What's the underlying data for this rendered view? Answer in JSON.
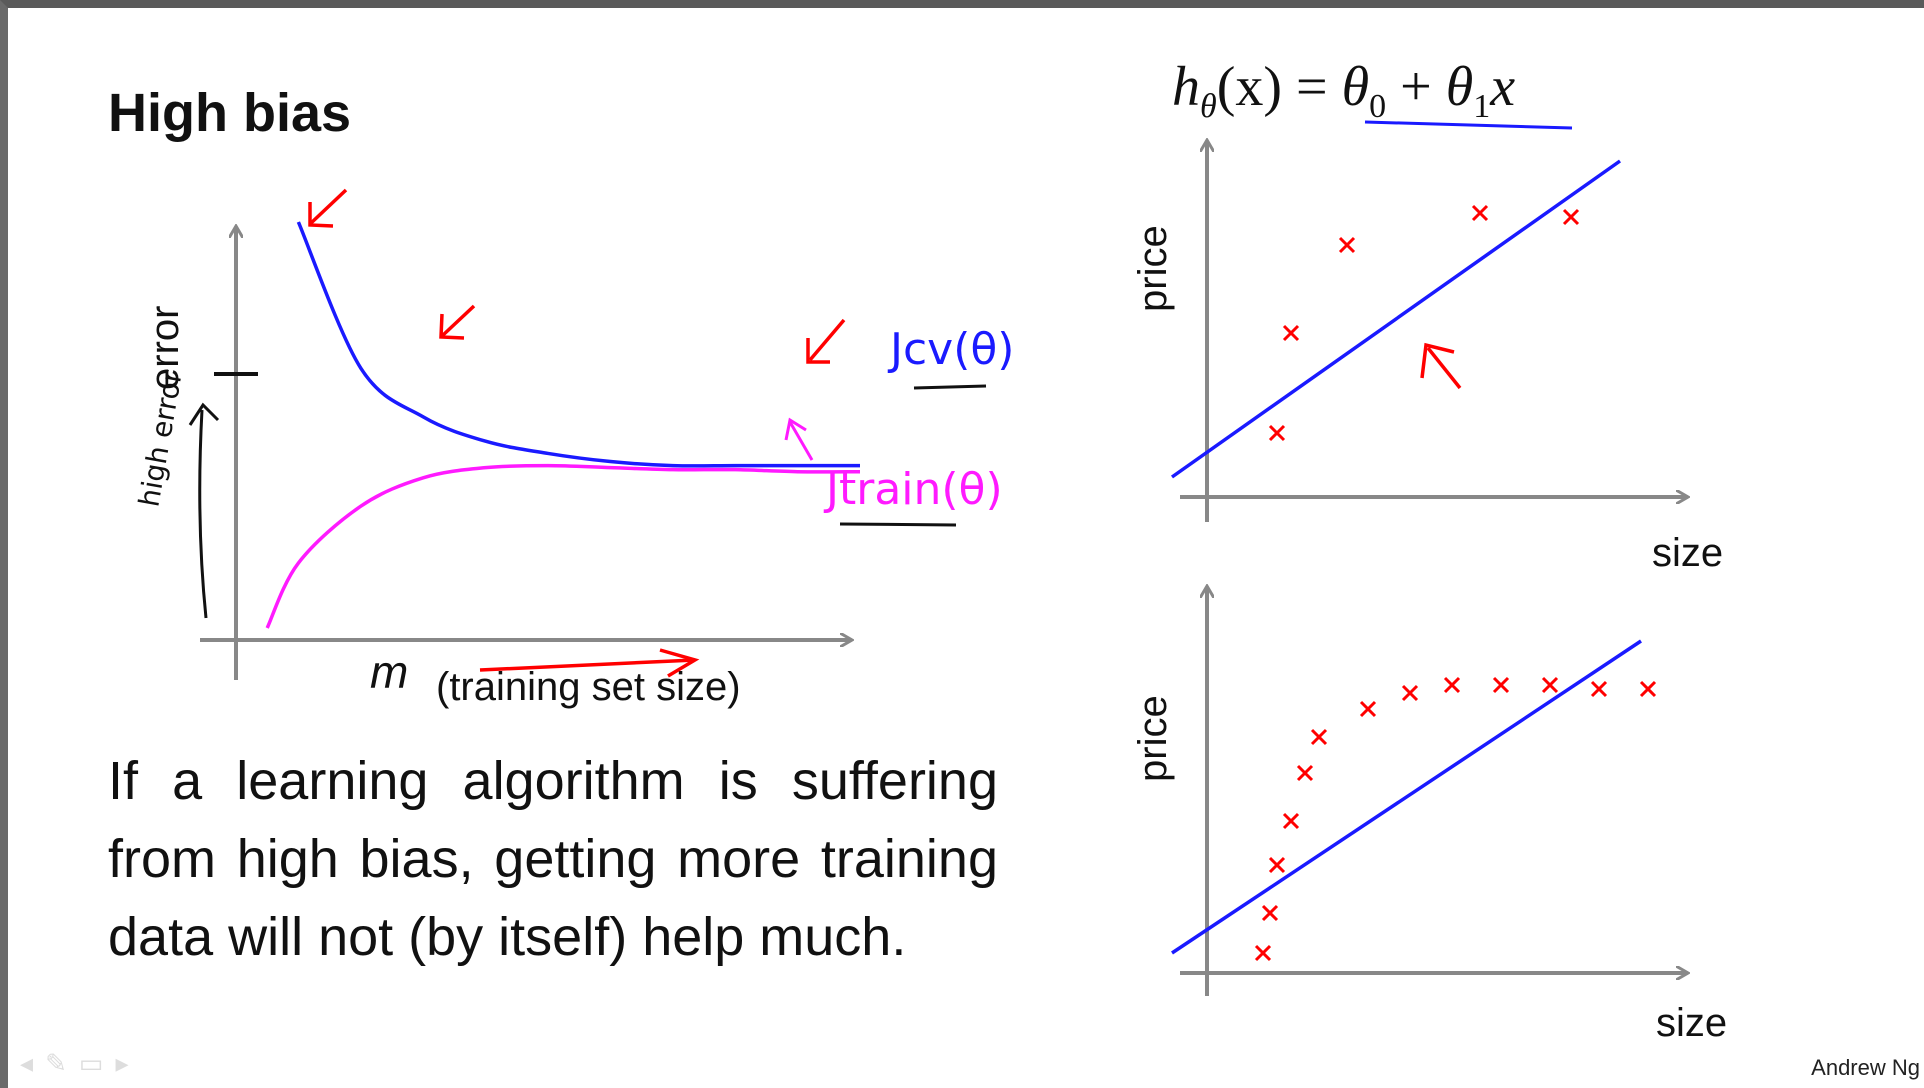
{
  "slide": {
    "title": "High bias",
    "formula": {
      "lhs": "h",
      "lhs_sub": "θ",
      "lhs_arg": "(x) = ",
      "t0": "θ",
      "t0_sub": "0",
      "plus": " + ",
      "t1": "θ",
      "t1_sub": "1",
      "t1_var": "x"
    },
    "body_text": "If a learning algorithm is suffering from high bias, getting more training data will not (by itself) help much.",
    "author": "Andrew Ng"
  },
  "learning_curve": {
    "ylabel": "error",
    "xlabel_var": "m",
    "xlabel_text": "(training set size)",
    "annotation_high_error": "high error",
    "cv_label": "Jcv(θ)",
    "train_label": "Jtrain(θ)",
    "colors": {
      "cv": "#1a1aff",
      "train": "#ff1aff",
      "annotation": "#ff0000",
      "axis": "#888888"
    }
  },
  "chart_data": [
    {
      "type": "line",
      "title": "",
      "xlabel": "m (training set size)",
      "ylabel": "error",
      "series": [
        {
          "name": "Jcv(θ)",
          "x": [
            1,
            2,
            3,
            4,
            5,
            6,
            7,
            8,
            9,
            10
          ],
          "values": [
            10,
            6.4,
            5.2,
            4.6,
            4.3,
            4.1,
            4.0,
            4.0,
            4.0,
            4.0
          ]
        },
        {
          "name": "Jtrain(θ)",
          "x": [
            0.5,
            1,
            2,
            3,
            4,
            5,
            6,
            7,
            8,
            9,
            10
          ],
          "values": [
            0,
            1.6,
            3.0,
            3.7,
            3.95,
            4.0,
            3.95,
            3.9,
            3.9,
            3.85,
            3.85
          ]
        }
      ],
      "grid": false
    },
    {
      "type": "scatter",
      "title": "",
      "xlabel": "size",
      "ylabel": "price",
      "points": [
        [
          1.0,
          1.6
        ],
        [
          1.2,
          4.1
        ],
        [
          2.0,
          6.3
        ],
        [
          3.9,
          7.1
        ],
        [
          5.2,
          7.0
        ]
      ],
      "fit_line": {
        "x": [
          -0.5,
          5.9
        ],
        "y": [
          0.5,
          8.4
        ]
      },
      "grid": false
    },
    {
      "type": "scatter",
      "title": "",
      "xlabel": "size",
      "ylabel": "price",
      "points": [
        [
          0.8,
          0.5
        ],
        [
          0.9,
          1.5
        ],
        [
          1.0,
          2.7
        ],
        [
          1.2,
          3.8
        ],
        [
          1.4,
          5.0
        ],
        [
          1.6,
          5.9
        ],
        [
          2.3,
          6.6
        ],
        [
          2.9,
          7.0
        ],
        [
          3.5,
          7.2
        ],
        [
          4.2,
          7.2
        ],
        [
          4.9,
          7.2
        ],
        [
          5.6,
          7.1
        ],
        [
          6.3,
          7.1
        ]
      ],
      "fit_line": {
        "x": [
          -0.5,
          6.2
        ],
        "y": [
          0.5,
          8.3
        ]
      },
      "grid": false
    }
  ]
}
